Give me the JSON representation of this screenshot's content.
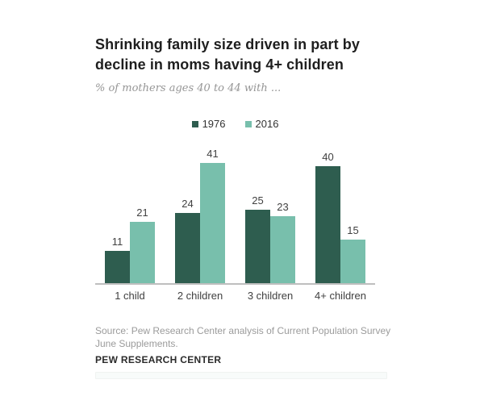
{
  "header": {
    "title_line1": "Shrinking family size driven in part by",
    "title_line2": "decline in moms having 4+ children",
    "subtitle": "% of mothers ages 40 to 44 with ..."
  },
  "chart_data": {
    "type": "bar",
    "title": "Shrinking family size driven in part by decline in moms having 4+ children",
    "subtitle": "% of mothers ages 40 to 44 with ...",
    "categories": [
      "1 child",
      "2 children",
      "3 children",
      "4+ children"
    ],
    "series": [
      {
        "name": "1976",
        "color": "#2E5D4F",
        "values": [
          11,
          24,
          25,
          40
        ]
      },
      {
        "name": "2016",
        "color": "#78BFAC",
        "values": [
          21,
          41,
          23,
          15
        ]
      }
    ],
    "xlabel": "",
    "ylabel": "",
    "ylim": [
      0,
      45
    ],
    "grid": false,
    "value_labels": true,
    "legend_position": "top-center"
  },
  "footer": {
    "source_line1": "Source: Pew Research Center analysis of Current Population Survey",
    "source_line2": "June Supplements.",
    "brand": "PEW RESEARCH CENTER"
  },
  "colors": {
    "series_1976": "#2E5D4F",
    "series_2016": "#78BFAC",
    "axis_line": "#BFBFBF",
    "title_text": "#1E1E1E",
    "subtitle_text": "#969696",
    "value_text": "#414141",
    "source_text": "#9B9B9B"
  }
}
